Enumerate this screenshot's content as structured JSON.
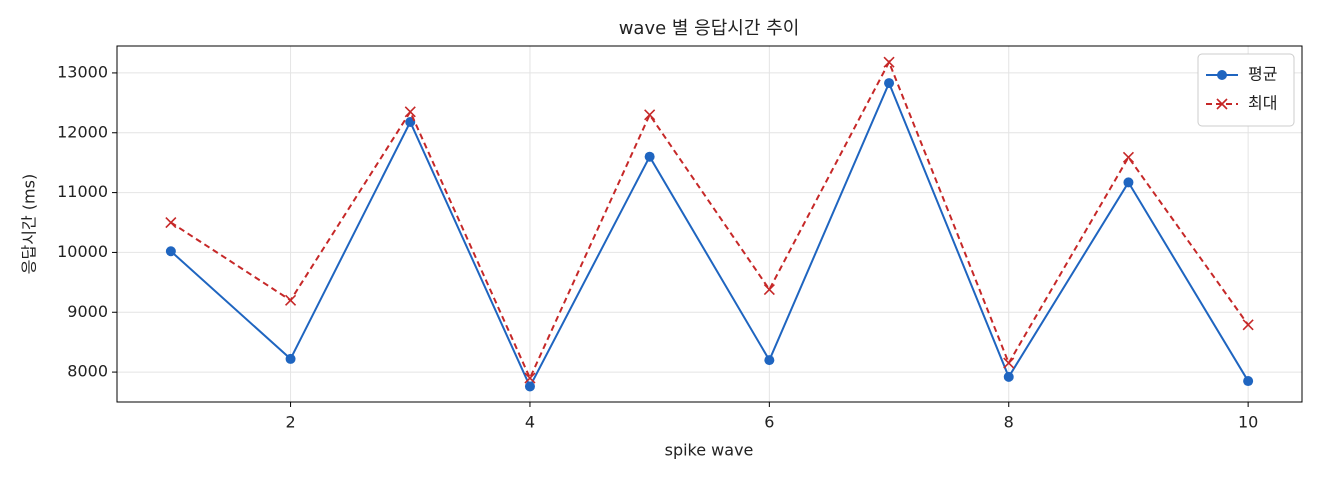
{
  "chart_data": {
    "type": "line",
    "title": "wave 별 응답시간 추이",
    "xlabel": "spike wave",
    "ylabel": "응답시간 (ms)",
    "x": [
      1,
      2,
      3,
      4,
      5,
      6,
      7,
      8,
      9,
      10
    ],
    "series": [
      {
        "name": "평균",
        "color": "#1f65c0",
        "linestyle": "solid",
        "marker": "circle",
        "values": [
          10020,
          8220,
          12180,
          7760,
          11600,
          8200,
          12830,
          7920,
          11170,
          7850
        ]
      },
      {
        "name": "최대",
        "color": "#c62828",
        "linestyle": "dashed",
        "marker": "x",
        "values": [
          10500,
          9200,
          12350,
          7900,
          12300,
          9380,
          13180,
          8150,
          11590,
          8790
        ]
      }
    ],
    "xlim": [
      0.55,
      10.45
    ],
    "xticks": [
      2,
      4,
      6,
      8,
      10
    ],
    "ylim": [
      7500,
      13450
    ],
    "yticks": [
      8000,
      9000,
      10000,
      11000,
      12000,
      13000
    ],
    "grid": true,
    "legend": "upper right"
  }
}
